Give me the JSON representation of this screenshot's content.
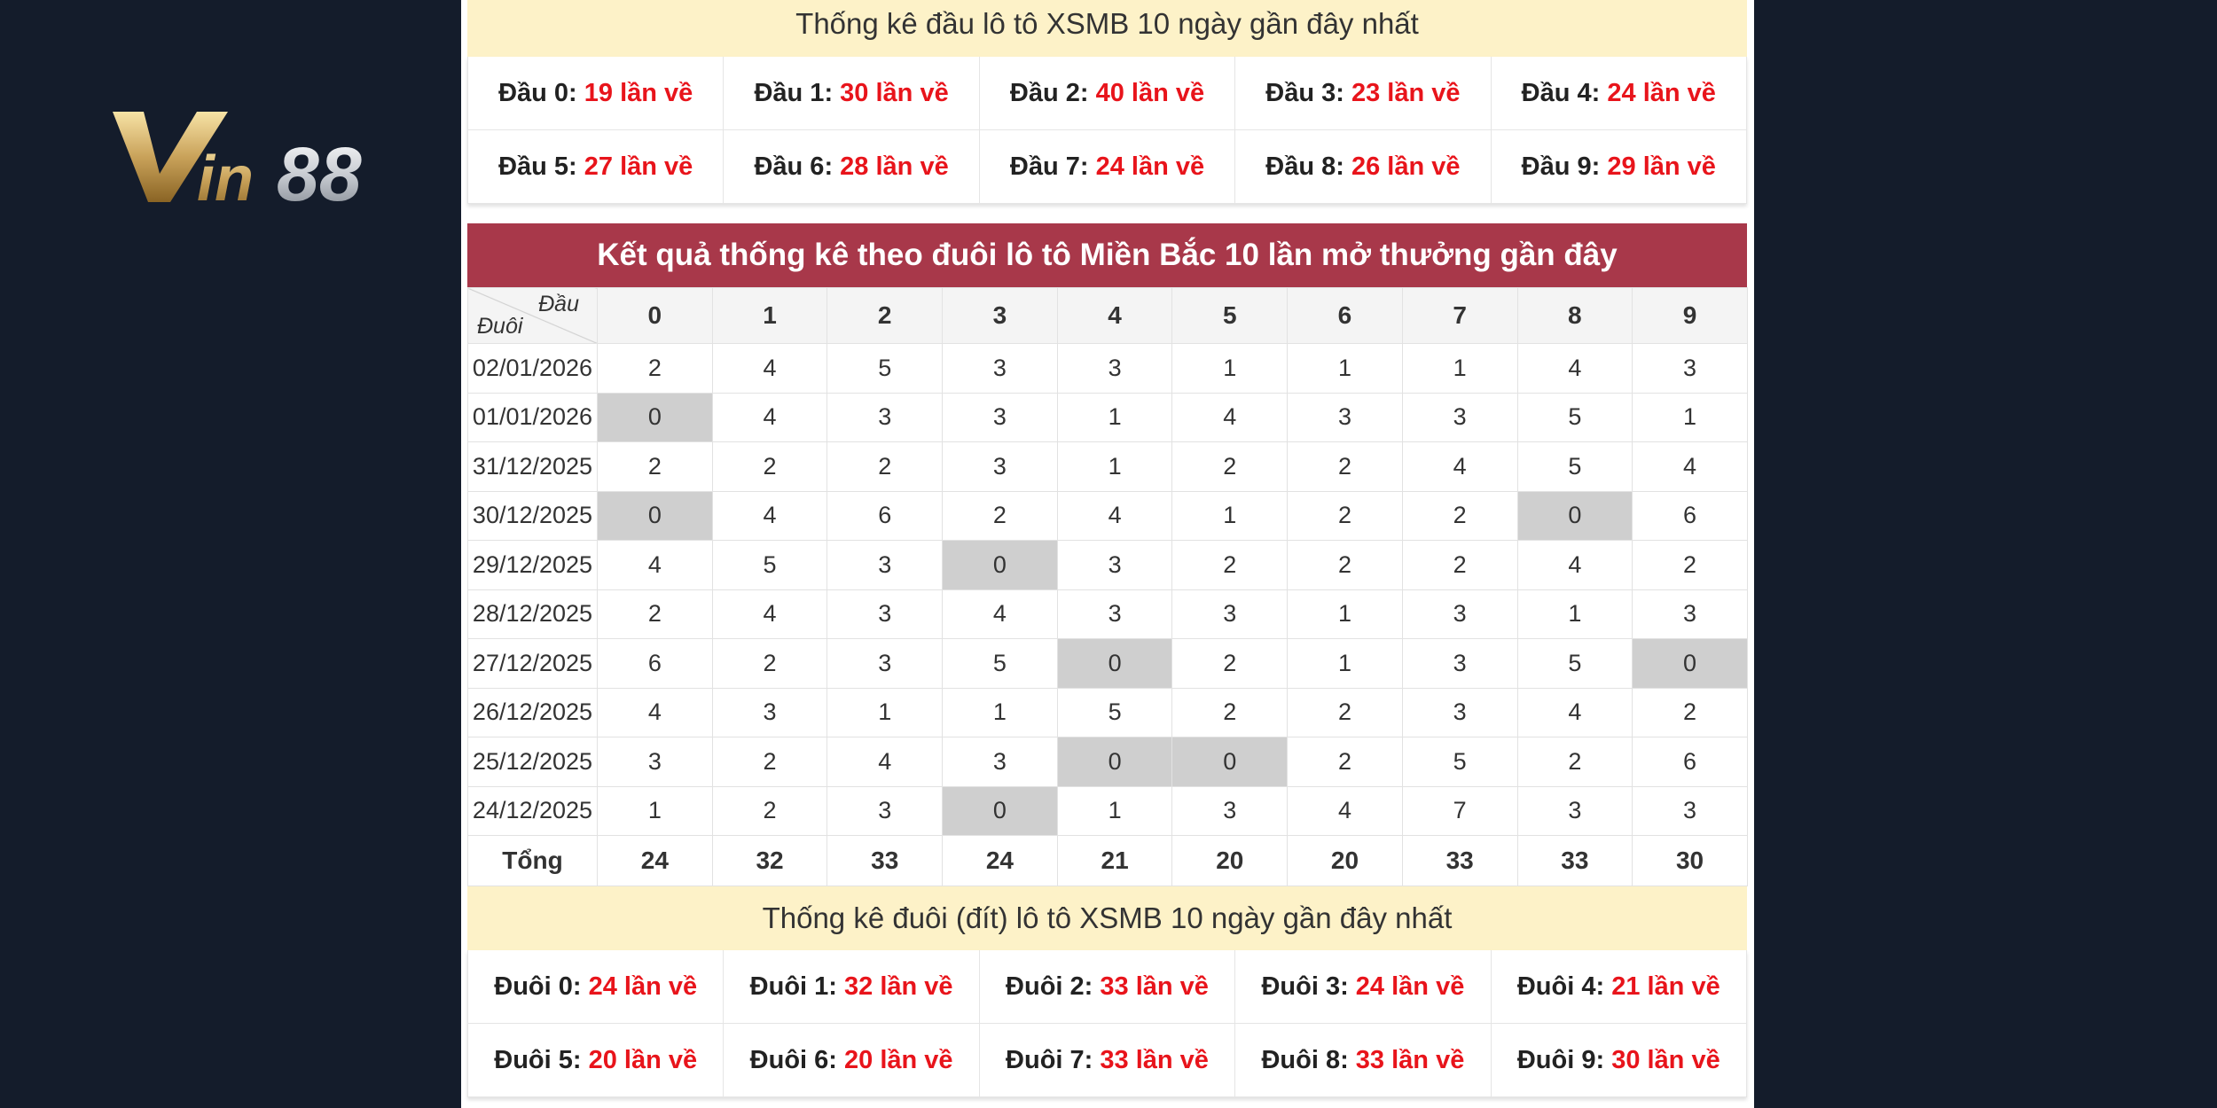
{
  "logo": {
    "text": "Vin88"
  },
  "head_stats": {
    "title": "Thống kê đầu lô tô XSMB 10 ngày gần đây nhất",
    "items": [
      {
        "label": "Đầu 0:",
        "count": "19 lần về"
      },
      {
        "label": "Đầu 1:",
        "count": "30 lần về"
      },
      {
        "label": "Đầu 2:",
        "count": "40 lần về"
      },
      {
        "label": "Đầu 3:",
        "count": "23 lần về"
      },
      {
        "label": "Đầu 4:",
        "count": "24 lần về"
      },
      {
        "label": "Đầu 5:",
        "count": "27 lần về"
      },
      {
        "label": "Đầu 6:",
        "count": "28 lần về"
      },
      {
        "label": "Đầu 7:",
        "count": "24 lần về"
      },
      {
        "label": "Đầu 8:",
        "count": "26 lần về"
      },
      {
        "label": "Đầu 9:",
        "count": "29 lần về"
      }
    ]
  },
  "tail_table": {
    "title": "Kết quả thống kê theo đuôi lô tô Miền Bắc 10 lần mở thưởng gần đây",
    "corner_top": "Đầu",
    "corner_bottom": "Đuôi",
    "columns": [
      "0",
      "1",
      "2",
      "3",
      "4",
      "5",
      "6",
      "7",
      "8",
      "9"
    ],
    "rows": [
      {
        "date": "02/01/2026",
        "values": [
          "2",
          "4",
          "5",
          "3",
          "3",
          "1",
          "1",
          "1",
          "4",
          "3"
        ]
      },
      {
        "date": "01/01/2026",
        "values": [
          "0",
          "4",
          "3",
          "3",
          "1",
          "4",
          "3",
          "3",
          "5",
          "1"
        ]
      },
      {
        "date": "31/12/2025",
        "values": [
          "2",
          "2",
          "2",
          "3",
          "1",
          "2",
          "2",
          "4",
          "5",
          "4"
        ]
      },
      {
        "date": "30/12/2025",
        "values": [
          "0",
          "4",
          "6",
          "2",
          "4",
          "1",
          "2",
          "2",
          "0",
          "6"
        ]
      },
      {
        "date": "29/12/2025",
        "values": [
          "4",
          "5",
          "3",
          "0",
          "3",
          "2",
          "2",
          "2",
          "4",
          "2"
        ]
      },
      {
        "date": "28/12/2025",
        "values": [
          "2",
          "4",
          "3",
          "4",
          "3",
          "3",
          "1",
          "3",
          "1",
          "3"
        ]
      },
      {
        "date": "27/12/2025",
        "values": [
          "6",
          "2",
          "3",
          "5",
          "0",
          "2",
          "1",
          "3",
          "5",
          "0"
        ]
      },
      {
        "date": "26/12/2025",
        "values": [
          "4",
          "3",
          "1",
          "1",
          "5",
          "2",
          "2",
          "3",
          "4",
          "2"
        ]
      },
      {
        "date": "25/12/2025",
        "values": [
          "3",
          "2",
          "4",
          "3",
          "0",
          "0",
          "2",
          "5",
          "2",
          "6"
        ]
      },
      {
        "date": "24/12/2025",
        "values": [
          "1",
          "2",
          "3",
          "0",
          "1",
          "3",
          "4",
          "7",
          "3",
          "3"
        ]
      }
    ],
    "total_label": "Tổng",
    "totals": [
      "24",
      "32",
      "33",
      "24",
      "21",
      "20",
      "20",
      "33",
      "33",
      "30"
    ]
  },
  "tail_stats": {
    "title": "Thống kê đuôi (đít) lô tô XSMB 10 ngày gần đây nhất",
    "items": [
      {
        "label": "Đuôi 0:",
        "count": "24 lần về"
      },
      {
        "label": "Đuôi 1:",
        "count": "32 lần về"
      },
      {
        "label": "Đuôi 2:",
        "count": "33 lần về"
      },
      {
        "label": "Đuôi 3:",
        "count": "24 lần về"
      },
      {
        "label": "Đuôi 4:",
        "count": "21 lần về"
      },
      {
        "label": "Đuôi 5:",
        "count": "20 lần về"
      },
      {
        "label": "Đuôi 6:",
        "count": "20 lần về"
      },
      {
        "label": "Đuôi 7:",
        "count": "33 lần về"
      },
      {
        "label": "Đuôi 8:",
        "count": "33 lần về"
      },
      {
        "label": "Đuôi 9:",
        "count": "30 lần về"
      }
    ]
  },
  "colors": {
    "background": "#141c2b",
    "band": "#fdf2c8",
    "header": "#a8384a",
    "count": "#e8141b",
    "zero_cell": "#cfcfcf"
  }
}
